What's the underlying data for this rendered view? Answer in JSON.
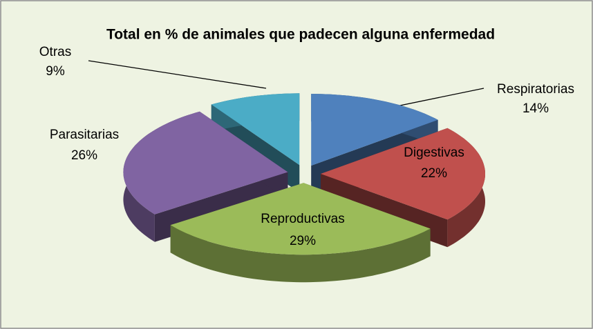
{
  "chart_data": {
    "type": "pie3d",
    "title": "Total en % de animales que padecen alguna enfermedad",
    "categories": [
      "Respiratorias",
      "Digestivas",
      "Reproductivas",
      "Parasitarias",
      "Otras"
    ],
    "values": [
      14,
      22,
      29,
      26,
      9
    ],
    "value_labels": [
      "14%",
      "22%",
      "29%",
      "26%",
      "9%"
    ],
    "colors": [
      "#4f81bd",
      "#c0504d",
      "#9bbb59",
      "#8064a2",
      "#4bacc6"
    ]
  }
}
